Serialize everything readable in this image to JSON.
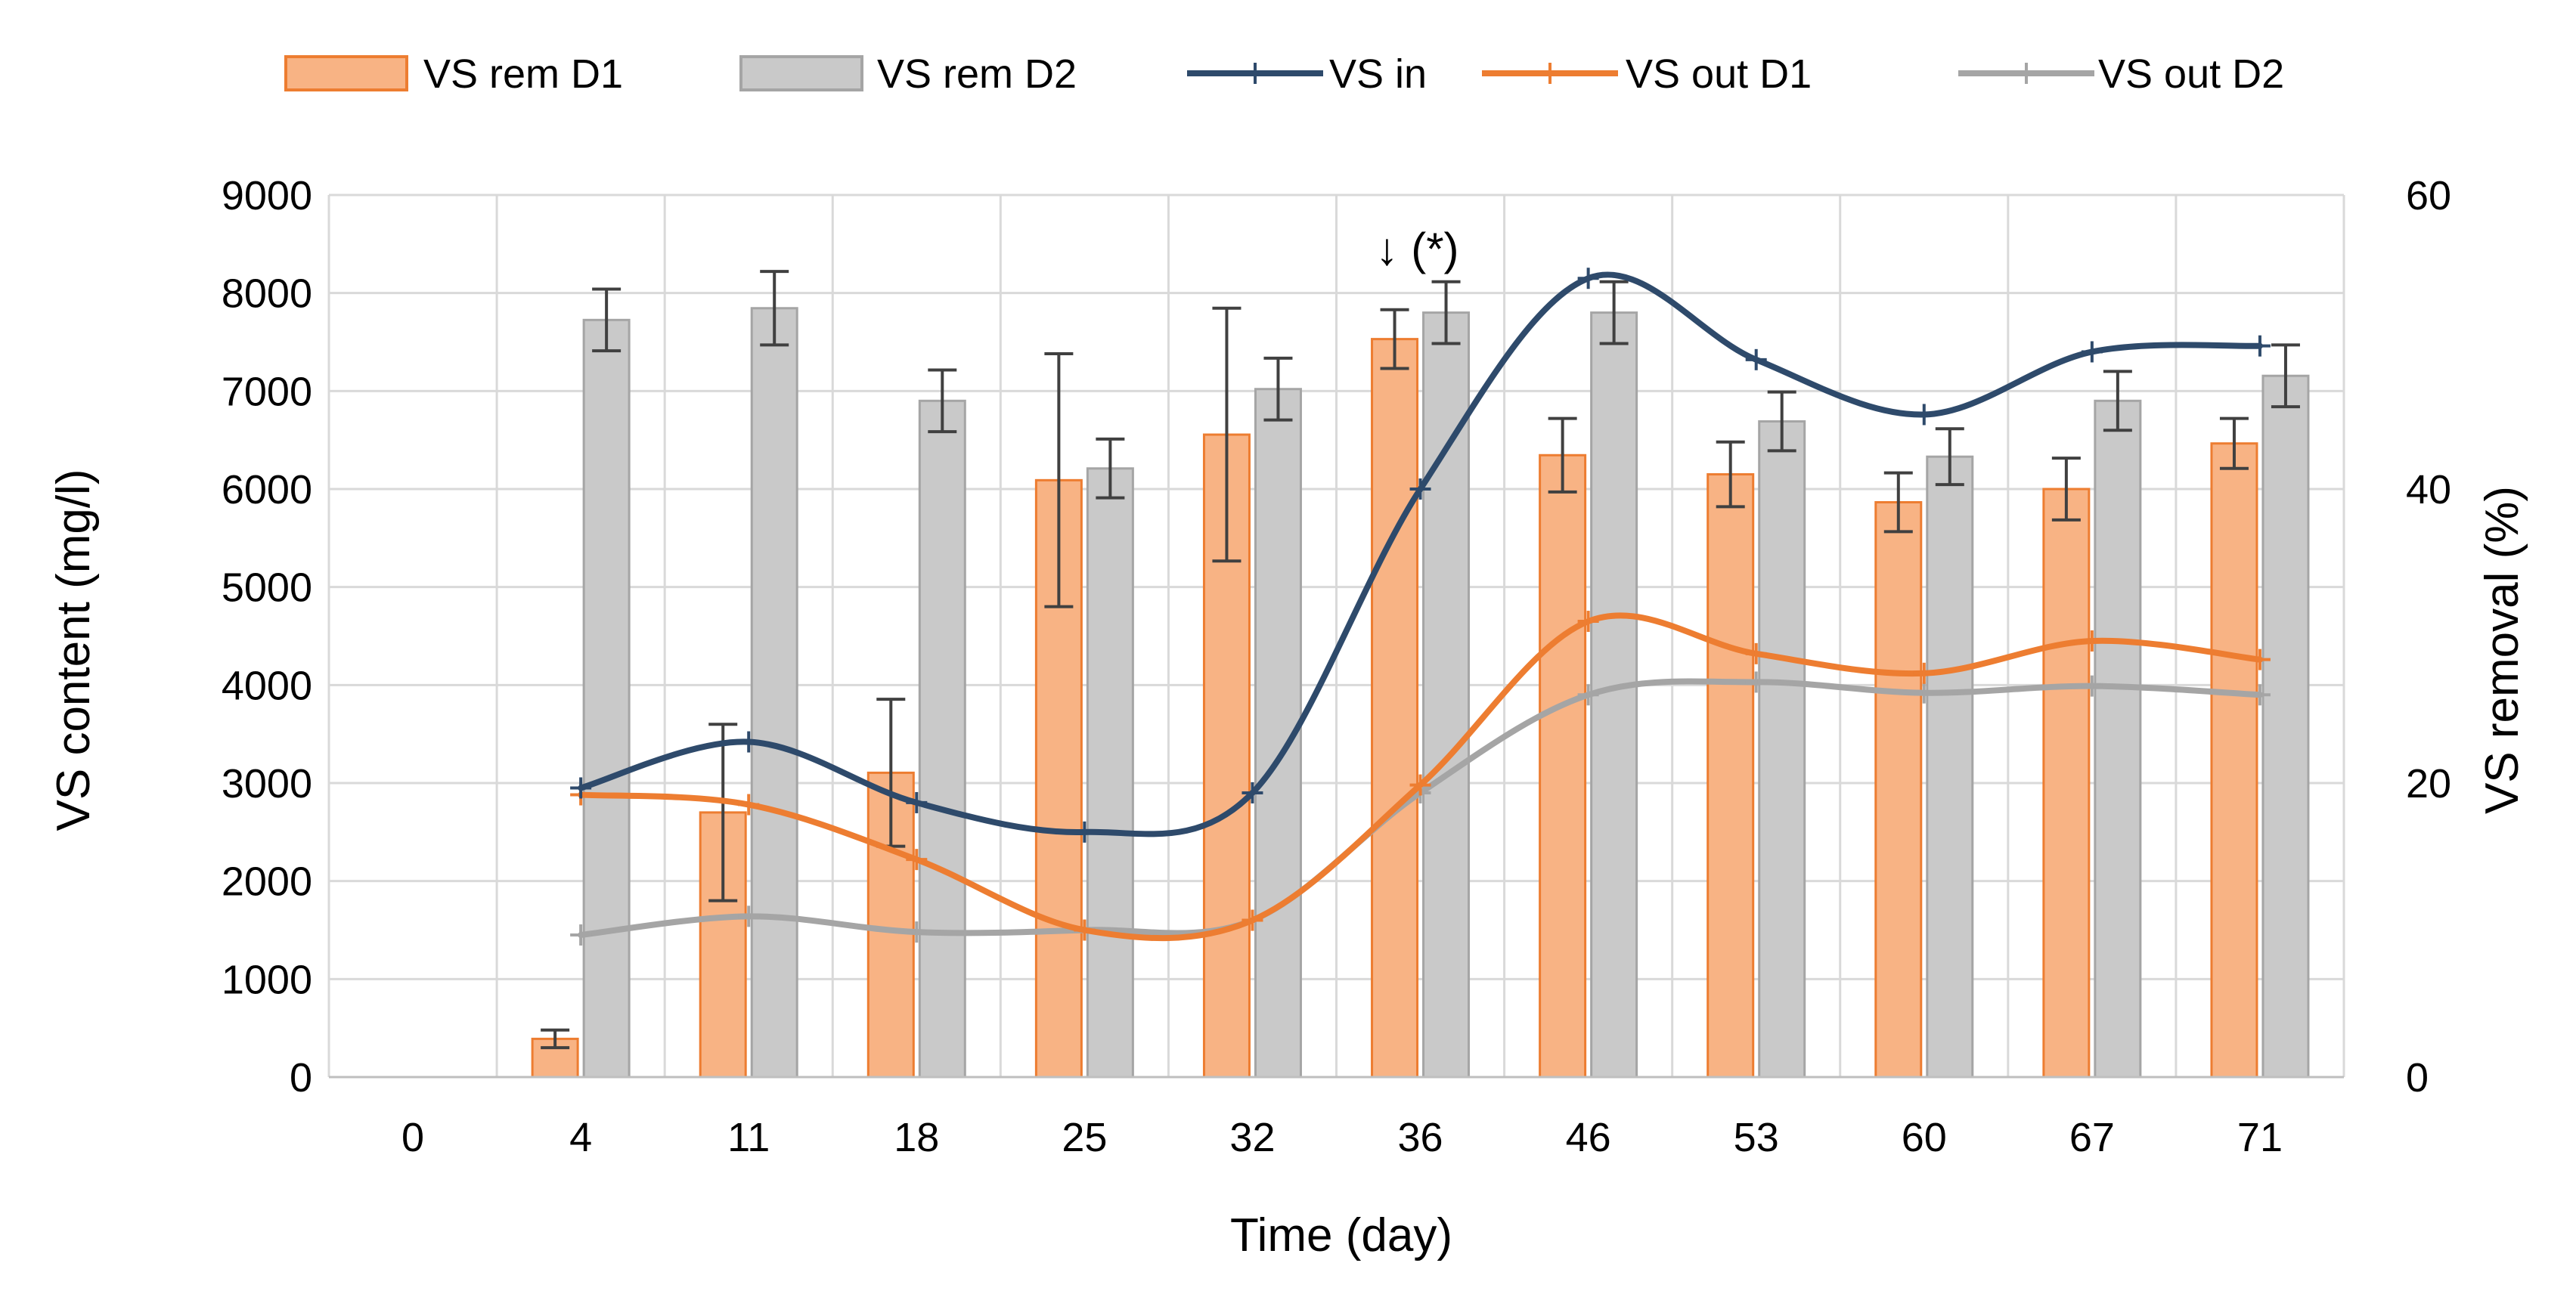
{
  "chart_data": {
    "type": "bar+line",
    "title": "",
    "xlabel": "Time (day)",
    "ylabel_left": "VS content (mg/l)",
    "ylabel_right": "VS removal (%)",
    "categories": [
      "0",
      "4",
      "11",
      "18",
      "25",
      "32",
      "36",
      "46",
      "53",
      "60",
      "67",
      "71"
    ],
    "ylim_left": [
      0,
      9000
    ],
    "yticks_left": [
      "0",
      "1000",
      "2000",
      "3000",
      "4000",
      "5000",
      "6000",
      "7000",
      "8000",
      "9000"
    ],
    "ylim_right": [
      0,
      60
    ],
    "yticks_right": [
      "0",
      "20",
      "40",
      "60"
    ],
    "grid": true,
    "legend_position": "top",
    "annotation": {
      "text": "↓ (*)",
      "category": "36",
      "value": 8400
    },
    "colors": {
      "rem_d1_fill": "#F8B384",
      "rem_d1_edge": "#ED7D31",
      "rem_d2_fill": "#C9C9C9",
      "rem_d2_edge": "#A5A5A5",
      "vs_in": "#2E4A6B",
      "vs_out_d1": "#ED7D31",
      "vs_out_d2": "#A5A5A5",
      "grid": "#D9D9D9",
      "error": "#404040"
    },
    "bars": [
      {
        "name": "VS rem D1",
        "axis": "right",
        "values": [
          null,
          2.6,
          18.0,
          20.7,
          40.6,
          43.7,
          50.2,
          42.3,
          41.0,
          39.1,
          40.0,
          43.1
        ],
        "errors": [
          null,
          0.6,
          6.0,
          5.0,
          8.6,
          8.6,
          2.0,
          2.5,
          2.2,
          2.0,
          2.1,
          1.7
        ]
      },
      {
        "name": "VS rem D2",
        "axis": "right",
        "values": [
          null,
          51.5,
          52.3,
          46.0,
          41.4,
          46.8,
          52.0,
          52.0,
          44.6,
          42.2,
          46.0,
          47.7
        ],
        "errors": [
          null,
          2.1,
          2.5,
          2.1,
          2.0,
          2.1,
          2.1,
          2.1,
          2.0,
          1.9,
          2.0,
          2.1
        ]
      }
    ],
    "series": [
      {
        "name": "VS in",
        "axis": "left",
        "values": [
          null,
          2950,
          3420,
          2800,
          2500,
          2900,
          6000,
          8150,
          7320,
          6760,
          7400,
          7460
        ]
      },
      {
        "name": "VS out D1",
        "axis": "left",
        "values": [
          null,
          2880,
          2780,
          2220,
          1500,
          1600,
          2980,
          4650,
          4320,
          4120,
          4450,
          4260
        ]
      },
      {
        "name": "VS out D2",
        "axis": "left",
        "values": [
          null,
          1450,
          1640,
          1480,
          1500,
          1600,
          2900,
          3900,
          4030,
          3920,
          3990,
          3900
        ]
      }
    ]
  }
}
